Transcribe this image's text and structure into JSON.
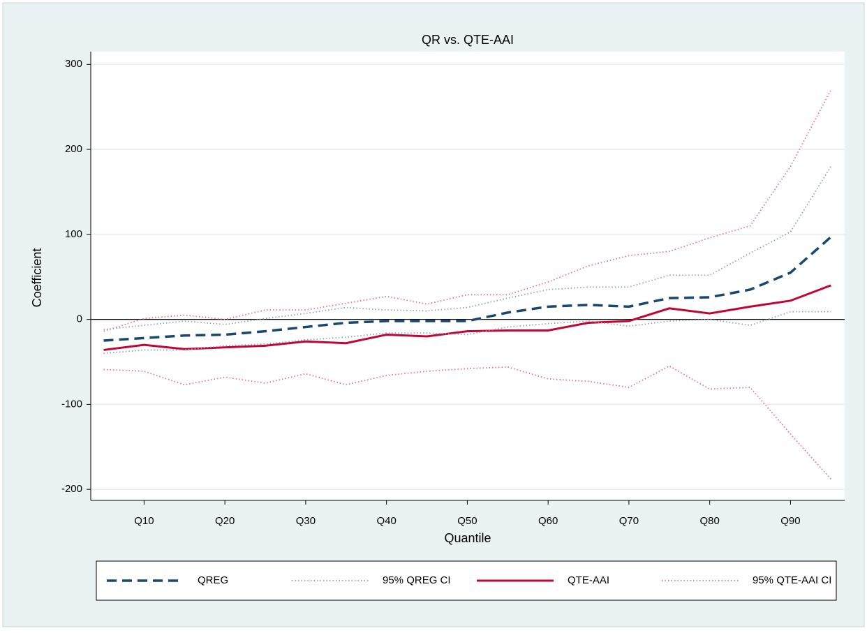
{
  "chart_data": {
    "type": "line",
    "title": "QR vs. QTE-AAI",
    "xlabel": "Quantile",
    "ylabel": "Coefficient",
    "x": [
      5,
      10,
      15,
      20,
      25,
      30,
      35,
      40,
      45,
      50,
      55,
      60,
      65,
      70,
      75,
      80,
      85,
      90,
      95
    ],
    "xlim": [
      3.4,
      96.7
    ],
    "xticks": [
      {
        "value": 10,
        "label": "Q10"
      },
      {
        "value": 20,
        "label": "Q20"
      },
      {
        "value": 30,
        "label": "Q30"
      },
      {
        "value": 40,
        "label": "Q40"
      },
      {
        "value": 50,
        "label": "Q50"
      },
      {
        "value": 60,
        "label": "Q60"
      },
      {
        "value": 70,
        "label": "Q70"
      },
      {
        "value": 80,
        "label": "Q80"
      },
      {
        "value": 90,
        "label": "Q90"
      }
    ],
    "ylim": [
      -213,
      315
    ],
    "yticks": [
      300,
      200,
      100,
      0,
      -100,
      -200
    ],
    "grid": true,
    "hline": 0,
    "legend": "bottom",
    "series": [
      {
        "name": "QREG",
        "color": "#1a476f",
        "dash": "dashed",
        "values": [
          -25,
          -22,
          -19,
          -18,
          -14,
          -9,
          -4,
          -2,
          -2,
          -2,
          8,
          15,
          17,
          15,
          25,
          26,
          35,
          55,
          97
        ]
      },
      {
        "name": "95% QREG CI",
        "color": "#90a4b8",
        "dash": "dotted",
        "values": [
          -12,
          -7,
          -2,
          -6,
          1,
          7,
          14,
          11,
          10,
          14,
          25,
          35,
          38,
          38,
          52,
          52,
          78,
          103,
          180
        ]
      },
      {
        "name": "QTE-AAI",
        "color": "#c10534",
        "dash": "solid",
        "values": [
          -36,
          -30,
          -35,
          -33,
          -31,
          -26,
          -28,
          -18,
          -20,
          -14,
          -13,
          -13,
          -4,
          -2,
          13,
          7,
          15,
          22,
          40
        ]
      },
      {
        "name": "95% QTE-AAI CI",
        "color": "#e8708a",
        "dash": "dotted",
        "values": [
          -14,
          1,
          5,
          0,
          11,
          11,
          19,
          27,
          18,
          29,
          29,
          44,
          63,
          75,
          80,
          96,
          110,
          180,
          270
        ]
      },
      {
        "color": "#90a4b8",
        "dash": "dotted",
        "values": [
          -40,
          -36,
          -36,
          -31,
          -29,
          -24,
          -21,
          -16,
          -16,
          -18,
          -9,
          -5,
          -2,
          -8,
          -2,
          0,
          -7,
          9,
          9
        ]
      },
      {
        "color": "#e8708a",
        "dash": "dotted",
        "values": [
          -59,
          -61,
          -77,
          -68,
          -75,
          -64,
          -77,
          -66,
          -61,
          -58,
          -56,
          -70,
          -73,
          -80,
          -55,
          -82,
          -80,
          -135,
          -188
        ]
      }
    ]
  }
}
